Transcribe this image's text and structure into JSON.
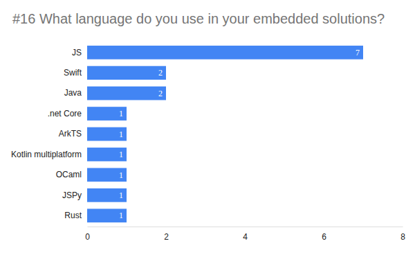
{
  "chart_data": {
    "type": "bar",
    "title": "#16 What language do you use in your embedded solutions?",
    "categories": [
      "JS",
      "Swift",
      "Java",
      ".net Core",
      "ArkTS",
      "Kotlin multiplatform",
      "OCaml",
      "JSPy",
      "Rust"
    ],
    "values": [
      7,
      2,
      2,
      1,
      1,
      1,
      1,
      1,
      1
    ],
    "color": "#4285f4",
    "orientation": "horizontal",
    "xlim": [
      0,
      8
    ],
    "xticks": [
      0,
      2,
      4,
      6,
      8
    ],
    "grid": false,
    "data_labels": true
  }
}
